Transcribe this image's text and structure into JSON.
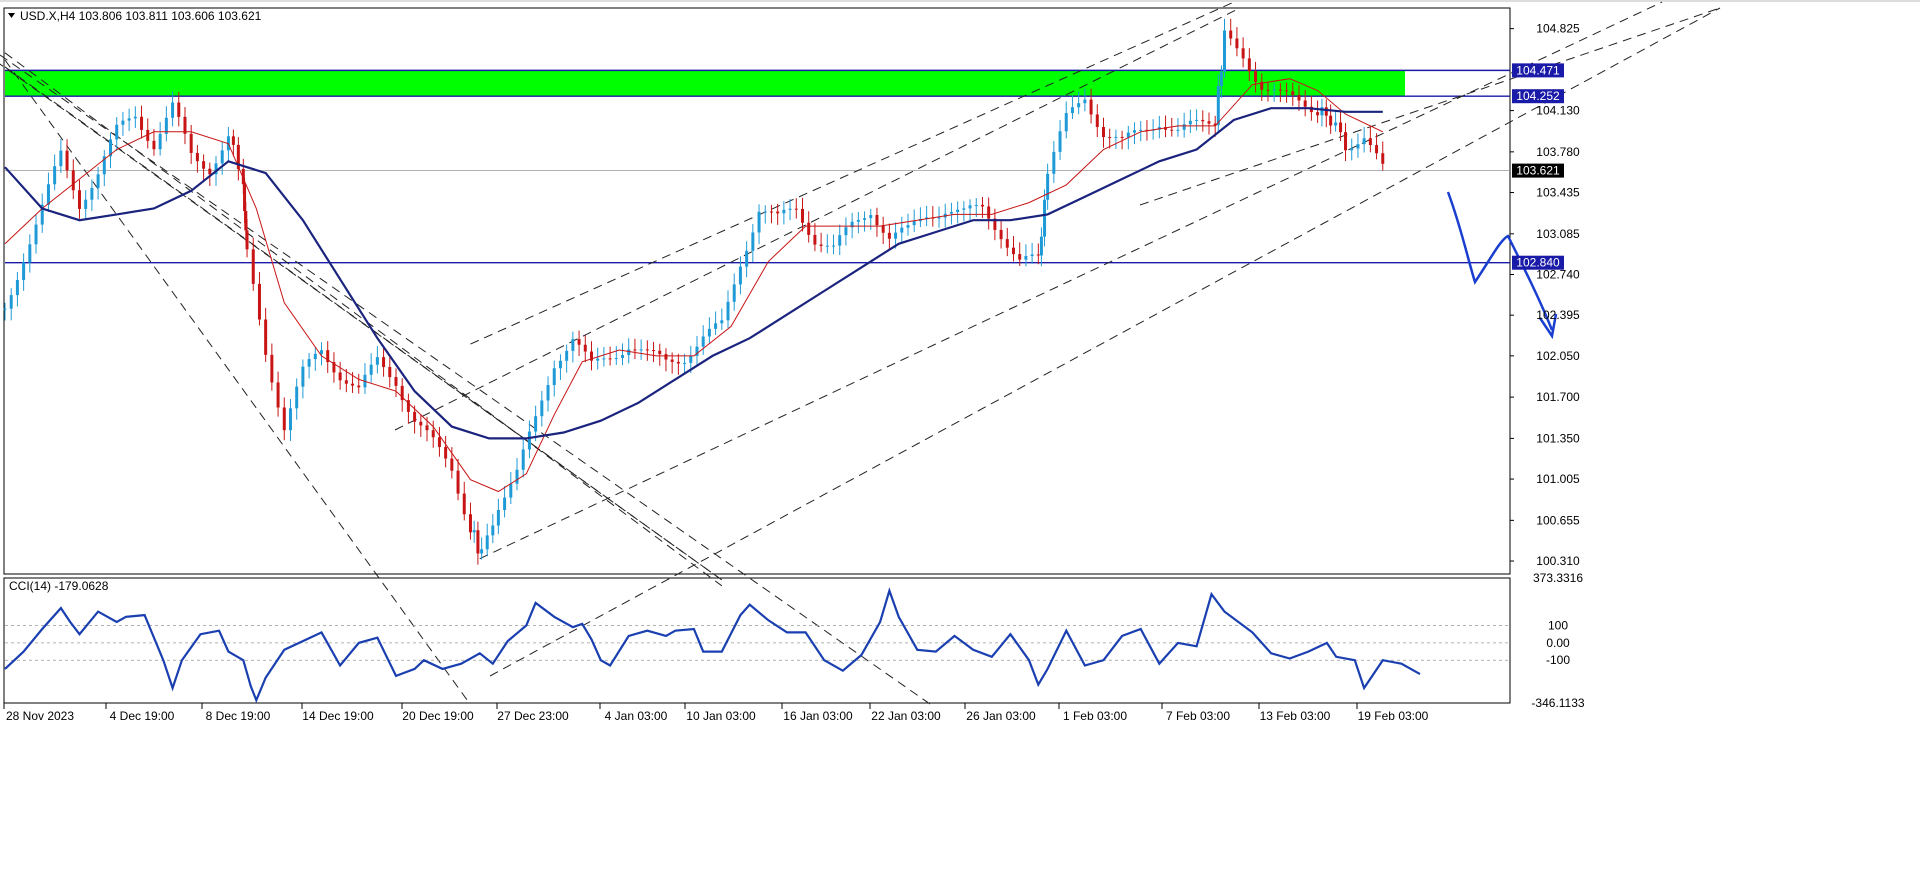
{
  "header": {
    "symbol_line": "USD.X,H4  103.806 103.811 103.606 103.621"
  },
  "colors": {
    "up": "#1e9bd7",
    "down": "#c81414",
    "ma_fast": "#c81414",
    "ma_slow": "#1a237e",
    "hline": "#1a1aa8",
    "zone": "#00ff00",
    "cci": "#1a3fb0",
    "forecast": "#1a3fd0"
  },
  "chart_data": [
    {
      "type": "candlestick",
      "symbol": "USD.X",
      "timeframe": "H4",
      "ohlc_last": {
        "open": 103.806,
        "high": 103.811,
        "low": 103.606,
        "close": 103.621
      },
      "ylim": [
        100.2,
        105.0
      ],
      "y_ticks": [
        "104.825",
        "104.130",
        "103.780",
        "103.435",
        "103.085",
        "102.740",
        "102.395",
        "102.050",
        "101.700",
        "101.350",
        "101.005",
        "100.655",
        "100.310"
      ],
      "x_ticks": [
        "28 Nov 2023",
        "4 Dec 19:00",
        "8 Dec 19:00",
        "14 Dec 19:00",
        "20 Dec 19:00",
        "27 Dec 23:00",
        "4 Jan 03:00",
        "10 Jan 03:00",
        "16 Jan 03:00",
        "22 Jan 03:00",
        "26 Jan 03:00",
        "1 Feb 03:00",
        "7 Feb 03:00",
        "13 Feb 03:00",
        "19 Feb 03:00"
      ],
      "price_tags": [
        {
          "value": 104.471,
          "label": "104.471",
          "color": "#1a1aa8"
        },
        {
          "value": 104.252,
          "label": "104.252",
          "color": "#1a1aa8"
        },
        {
          "value": 103.621,
          "label": "103.621",
          "color": "#000000"
        },
        {
          "value": 102.84,
          "label": "102.840",
          "color": "#1a1aa8"
        }
      ],
      "zones": [
        {
          "from": 104.252,
          "to": 104.471,
          "color": "#00ff00"
        }
      ],
      "horizontal_lines": [
        104.471,
        104.252,
        102.84
      ],
      "close_path": [
        [
          0,
          102.45
        ],
        [
          10,
          102.9
        ],
        [
          20,
          103.3
        ],
        [
          30,
          103.75
        ],
        [
          40,
          103.35
        ],
        [
          50,
          103.6
        ],
        [
          60,
          103.95
        ],
        [
          70,
          104.1
        ],
        [
          80,
          103.85
        ],
        [
          90,
          104.15
        ],
        [
          100,
          103.75
        ],
        [
          110,
          103.65
        ],
        [
          120,
          103.9
        ],
        [
          128,
          103.55
        ],
        [
          130,
          102.9
        ],
        [
          140,
          102.1
        ],
        [
          150,
          101.45
        ],
        [
          160,
          101.9
        ],
        [
          170,
          102.1
        ],
        [
          180,
          101.9
        ],
        [
          190,
          101.75
        ],
        [
          200,
          102.0
        ],
        [
          210,
          101.85
        ],
        [
          220,
          101.5
        ],
        [
          230,
          101.3
        ],
        [
          240,
          101.1
        ],
        [
          250,
          100.6
        ],
        [
          256,
          100.35
        ],
        [
          265,
          100.8
        ],
        [
          275,
          101.05
        ],
        [
          285,
          101.5
        ],
        [
          295,
          102.0
        ],
        [
          305,
          102.2
        ],
        [
          315,
          101.95
        ],
        [
          325,
          102.05
        ],
        [
          335,
          102.15
        ],
        [
          345,
          102.05
        ],
        [
          355,
          102.0
        ],
        [
          365,
          102.05
        ],
        [
          375,
          102.2
        ],
        [
          385,
          102.3
        ],
        [
          395,
          102.85
        ],
        [
          405,
          103.3
        ],
        [
          415,
          103.2
        ],
        [
          425,
          103.3
        ],
        [
          435,
          103.05
        ],
        [
          445,
          102.95
        ],
        [
          455,
          103.15
        ],
        [
          465,
          103.3
        ],
        [
          475,
          103.05
        ],
        [
          485,
          103.1
        ],
        [
          495,
          103.25
        ],
        [
          505,
          103.3
        ],
        [
          515,
          103.25
        ],
        [
          525,
          103.3
        ],
        [
          535,
          103.1
        ],
        [
          545,
          102.85
        ],
        [
          555,
          102.85
        ],
        [
          560,
          103.6
        ],
        [
          570,
          104.05
        ],
        [
          580,
          104.25
        ],
        [
          590,
          103.95
        ],
        [
          600,
          103.85
        ],
        [
          610,
          103.95
        ],
        [
          620,
          104.05
        ],
        [
          630,
          103.95
        ],
        [
          640,
          104.0
        ],
        [
          650,
          104.05
        ],
        [
          655,
          104.75
        ],
        [
          665,
          104.6
        ],
        [
          675,
          104.35
        ],
        [
          685,
          104.25
        ],
        [
          695,
          104.2
        ],
        [
          705,
          104.15
        ],
        [
          712,
          104.05
        ],
        [
          720,
          103.85
        ],
        [
          730,
          103.9
        ],
        [
          740,
          103.62
        ]
      ],
      "ma_fast_path": [
        [
          0,
          103.0
        ],
        [
          20,
          103.3
        ],
        [
          40,
          103.55
        ],
        [
          60,
          103.8
        ],
        [
          80,
          103.95
        ],
        [
          100,
          103.95
        ],
        [
          120,
          103.85
        ],
        [
          135,
          103.3
        ],
        [
          150,
          102.5
        ],
        [
          170,
          102.05
        ],
        [
          190,
          101.85
        ],
        [
          210,
          101.75
        ],
        [
          230,
          101.45
        ],
        [
          250,
          101.0
        ],
        [
          265,
          100.9
        ],
        [
          280,
          101.05
        ],
        [
          295,
          101.55
        ],
        [
          310,
          102.0
        ],
        [
          330,
          102.1
        ],
        [
          350,
          102.05
        ],
        [
          370,
          102.05
        ],
        [
          390,
          102.3
        ],
        [
          410,
          102.85
        ],
        [
          430,
          103.15
        ],
        [
          450,
          103.15
        ],
        [
          470,
          103.15
        ],
        [
          490,
          103.2
        ],
        [
          510,
          103.25
        ],
        [
          530,
          103.25
        ],
        [
          550,
          103.35
        ],
        [
          570,
          103.5
        ],
        [
          590,
          103.8
        ],
        [
          610,
          103.95
        ],
        [
          630,
          104.0
        ],
        [
          650,
          104.0
        ],
        [
          670,
          104.35
        ],
        [
          690,
          104.4
        ],
        [
          705,
          104.3
        ],
        [
          720,
          104.1
        ],
        [
          740,
          103.95
        ]
      ],
      "ma_slow_path": [
        [
          0,
          103.65
        ],
        [
          20,
          103.3
        ],
        [
          40,
          103.2
        ],
        [
          60,
          103.25
        ],
        [
          80,
          103.3
        ],
        [
          100,
          103.45
        ],
        [
          120,
          103.7
        ],
        [
          140,
          103.6
        ],
        [
          160,
          103.2
        ],
        [
          180,
          102.7
        ],
        [
          200,
          102.2
        ],
        [
          220,
          101.75
        ],
        [
          240,
          101.45
        ],
        [
          260,
          101.35
        ],
        [
          280,
          101.35
        ],
        [
          300,
          101.4
        ],
        [
          320,
          101.5
        ],
        [
          340,
          101.65
        ],
        [
          360,
          101.85
        ],
        [
          380,
          102.05
        ],
        [
          400,
          102.2
        ],
        [
          420,
          102.4
        ],
        [
          440,
          102.6
        ],
        [
          460,
          102.8
        ],
        [
          480,
          103.0
        ],
        [
          500,
          103.1
        ],
        [
          520,
          103.2
        ],
        [
          540,
          103.2
        ],
        [
          560,
          103.25
        ],
        [
          580,
          103.4
        ],
        [
          600,
          103.55
        ],
        [
          620,
          103.7
        ],
        [
          640,
          103.8
        ],
        [
          660,
          104.05
        ],
        [
          680,
          104.15
        ],
        [
          700,
          104.15
        ],
        [
          720,
          104.12
        ],
        [
          740,
          104.12
        ]
      ],
      "trendlines": [
        {
          "style": "dashed",
          "from": [
            -5,
            104.55
          ],
          "to": [
            385,
            100.15
          ]
        },
        {
          "style": "dashed",
          "from": [
            0,
            104.5
          ],
          "to": [
            385,
            100.15
          ]
        },
        {
          "style": "dashed",
          "from": [
            0,
            104.62
          ],
          "to": [
            385,
            100.1
          ]
        },
        {
          "style": "dashed",
          "from": [
            255,
            100.33
          ],
          "to": [
            890,
            105.05
          ]
        },
        {
          "style": "dashed",
          "from": [
            250,
            102.15
          ],
          "to": [
            660,
            105.05
          ]
        }
      ]
    },
    {
      "type": "line",
      "title": "CCI(14) -179.0628",
      "series": [
        {
          "name": "CCI(14)",
          "values_note": "oscillator"
        }
      ],
      "ylim": [
        -346.1133,
        373.3316
      ],
      "y_ticks": [
        "373.3316",
        "100",
        "0.00",
        "-100",
        "-346.1133"
      ],
      "levels": [
        100,
        0,
        -100
      ],
      "path": [
        [
          0,
          -150
        ],
        [
          10,
          -50
        ],
        [
          20,
          80
        ],
        [
          30,
          200
        ],
        [
          35,
          120
        ],
        [
          40,
          50
        ],
        [
          50,
          180
        ],
        [
          60,
          120
        ],
        [
          65,
          150
        ],
        [
          75,
          160
        ],
        [
          85,
          -100
        ],
        [
          90,
          -260
        ],
        [
          95,
          -100
        ],
        [
          105,
          50
        ],
        [
          115,
          70
        ],
        [
          120,
          -50
        ],
        [
          128,
          -100
        ],
        [
          132,
          -250
        ],
        [
          135,
          -330
        ],
        [
          140,
          -200
        ],
        [
          150,
          -40
        ],
        [
          160,
          10
        ],
        [
          170,
          60
        ],
        [
          180,
          -130
        ],
        [
          190,
          0
        ],
        [
          200,
          30
        ],
        [
          210,
          -190
        ],
        [
          220,
          -150
        ],
        [
          225,
          -100
        ],
        [
          235,
          -150
        ],
        [
          245,
          -120
        ],
        [
          255,
          -60
        ],
        [
          262,
          -120
        ],
        [
          270,
          10
        ],
        [
          280,
          100
        ],
        [
          285,
          230
        ],
        [
          295,
          150
        ],
        [
          305,
          90
        ],
        [
          310,
          110
        ],
        [
          315,
          20
        ],
        [
          320,
          -100
        ],
        [
          325,
          -130
        ],
        [
          335,
          40
        ],
        [
          345,
          70
        ],
        [
          355,
          40
        ],
        [
          360,
          70
        ],
        [
          370,
          80
        ],
        [
          375,
          -50
        ],
        [
          385,
          -50
        ],
        [
          395,
          160
        ],
        [
          400,
          220
        ],
        [
          410,
          130
        ],
        [
          420,
          60
        ],
        [
          430,
          60
        ],
        [
          440,
          -100
        ],
        [
          450,
          -160
        ],
        [
          460,
          -70
        ],
        [
          470,
          120
        ],
        [
          475,
          300
        ],
        [
          480,
          150
        ],
        [
          490,
          -40
        ],
        [
          500,
          -50
        ],
        [
          510,
          40
        ],
        [
          520,
          -40
        ],
        [
          530,
          -80
        ],
        [
          540,
          50
        ],
        [
          550,
          -100
        ],
        [
          555,
          -240
        ],
        [
          560,
          -150
        ],
        [
          570,
          70
        ],
        [
          580,
          -130
        ],
        [
          590,
          -100
        ],
        [
          600,
          40
        ],
        [
          610,
          80
        ],
        [
          620,
          -120
        ],
        [
          630,
          0
        ],
        [
          640,
          -20
        ],
        [
          648,
          280
        ],
        [
          655,
          180
        ],
        [
          670,
          60
        ],
        [
          680,
          -60
        ],
        [
          690,
          -90
        ],
        [
          700,
          -50
        ],
        [
          710,
          0
        ],
        [
          715,
          -80
        ],
        [
          725,
          -100
        ],
        [
          730,
          -260
        ],
        [
          740,
          -100
        ],
        [
          750,
          -120
        ],
        [
          760,
          -180
        ]
      ]
    }
  ],
  "forecast_arrow": {
    "color": "#1a3fd0"
  }
}
